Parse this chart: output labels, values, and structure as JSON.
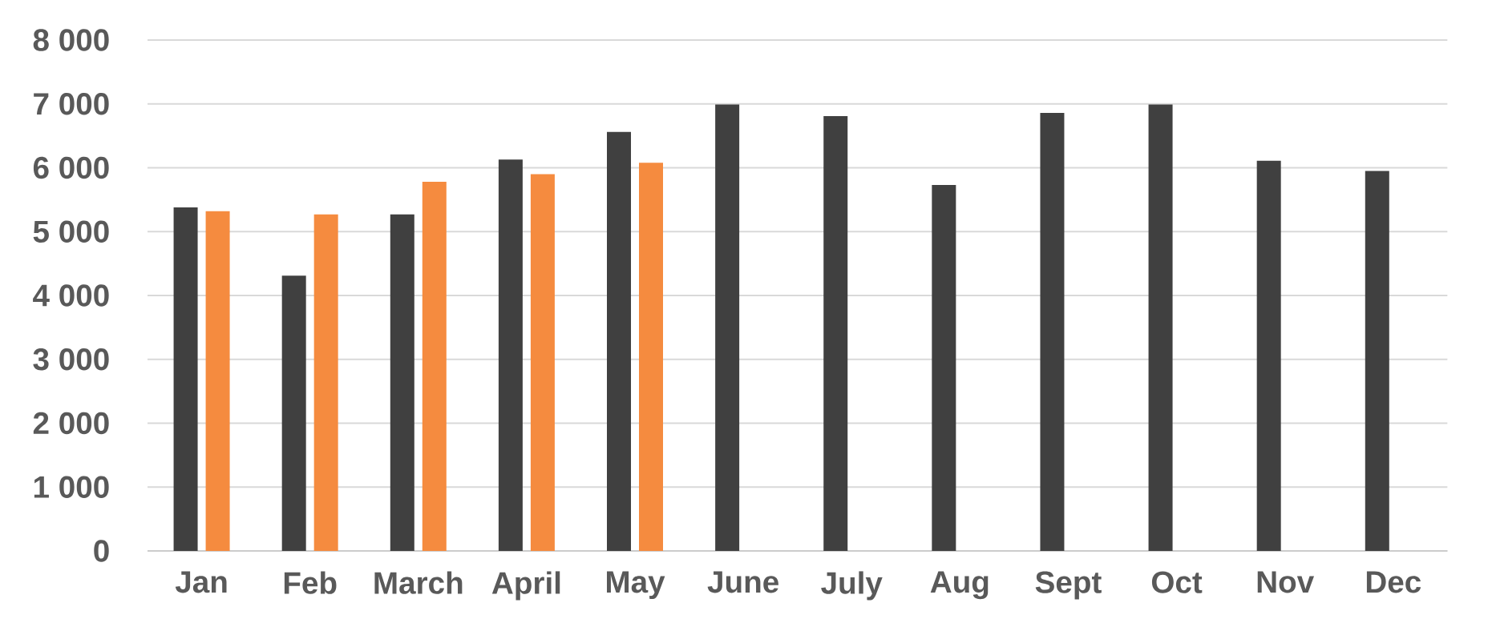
{
  "chart_data": {
    "type": "bar",
    "categories": [
      "Jan",
      "Feb",
      "March",
      "April",
      "May",
      "June",
      "July",
      "Aug",
      "Sept",
      "Oct",
      "Nov",
      "Dec"
    ],
    "series": [
      {
        "color": "#404040",
        "values": [
          5380,
          4310,
          5270,
          6130,
          6560,
          6990,
          6810,
          5730,
          6860,
          6990,
          6110,
          5950
        ]
      },
      {
        "color": "#f58b3f",
        "values": [
          5320,
          5270,
          5780,
          5900,
          6080,
          null,
          null,
          null,
          null,
          null,
          null,
          null
        ]
      }
    ],
    "ylim": [
      0,
      8000
    ],
    "yticks": [
      {
        "value": 0,
        "label": "0"
      },
      {
        "value": 1000,
        "label": "1 000"
      },
      {
        "value": 2000,
        "label": "2 000"
      },
      {
        "value": 3000,
        "label": "3 000"
      },
      {
        "value": 4000,
        "label": "4 000"
      },
      {
        "value": 5000,
        "label": "5 000"
      },
      {
        "value": 6000,
        "label": "6 000"
      },
      {
        "value": 7000,
        "label": "7 000"
      },
      {
        "value": 8000,
        "label": "8 000"
      }
    ],
    "grid": "y",
    "legend": false
  }
}
